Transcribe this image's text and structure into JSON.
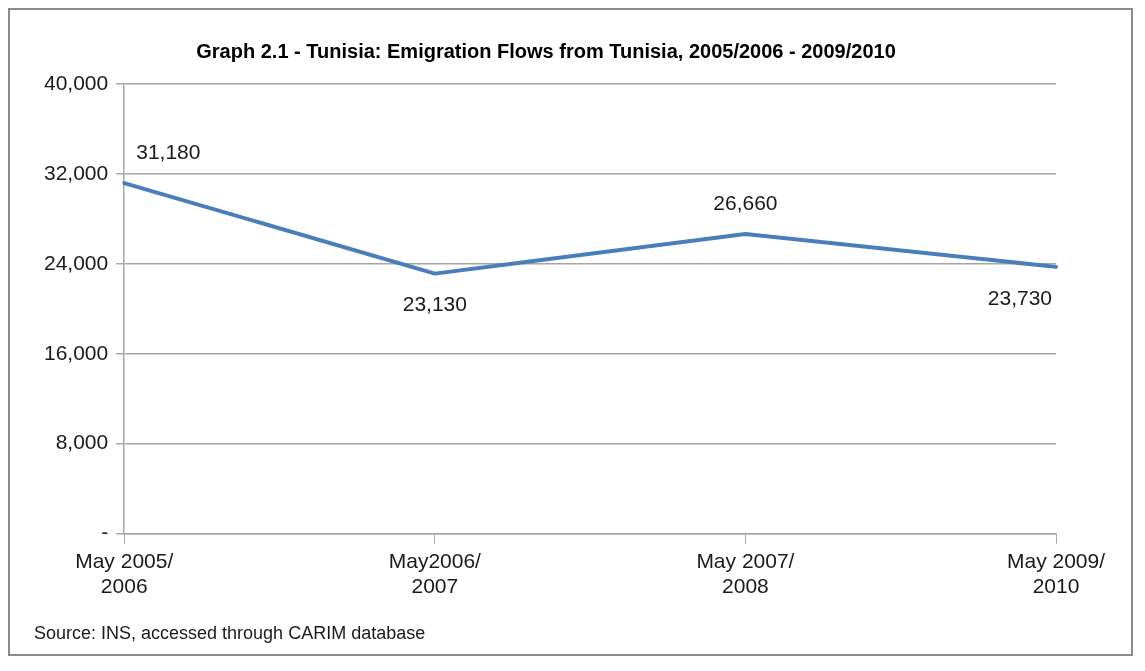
{
  "chart_data": {
    "type": "line",
    "title": "Graph 2.1 - Tunisia: Emigration Flows from Tunisia, 2005/2006 - 2009/2010",
    "categories": [
      "May 2005/\n2006",
      "May2006/\n2007",
      "May 2007/\n2008",
      "May 2009/\n2010"
    ],
    "values": [
      31180,
      23130,
      26660,
      23730
    ],
    "value_labels": [
      "31,180",
      "23,130",
      "26,660",
      "23,730"
    ],
    "color": "#4a7ebb",
    "ylim": [
      0,
      40000
    ],
    "yticks": [
      {
        "value": 0,
        "label": "-"
      },
      {
        "value": 8000,
        "label": "8,000"
      },
      {
        "value": 16000,
        "label": "16,000"
      },
      {
        "value": 24000,
        "label": "24,000"
      },
      {
        "value": 32000,
        "label": "32,000"
      },
      {
        "value": 40000,
        "label": "40,000"
      }
    ],
    "grid": "y",
    "annotations": [
      "Source: INS, accessed through CARIM database"
    ]
  }
}
